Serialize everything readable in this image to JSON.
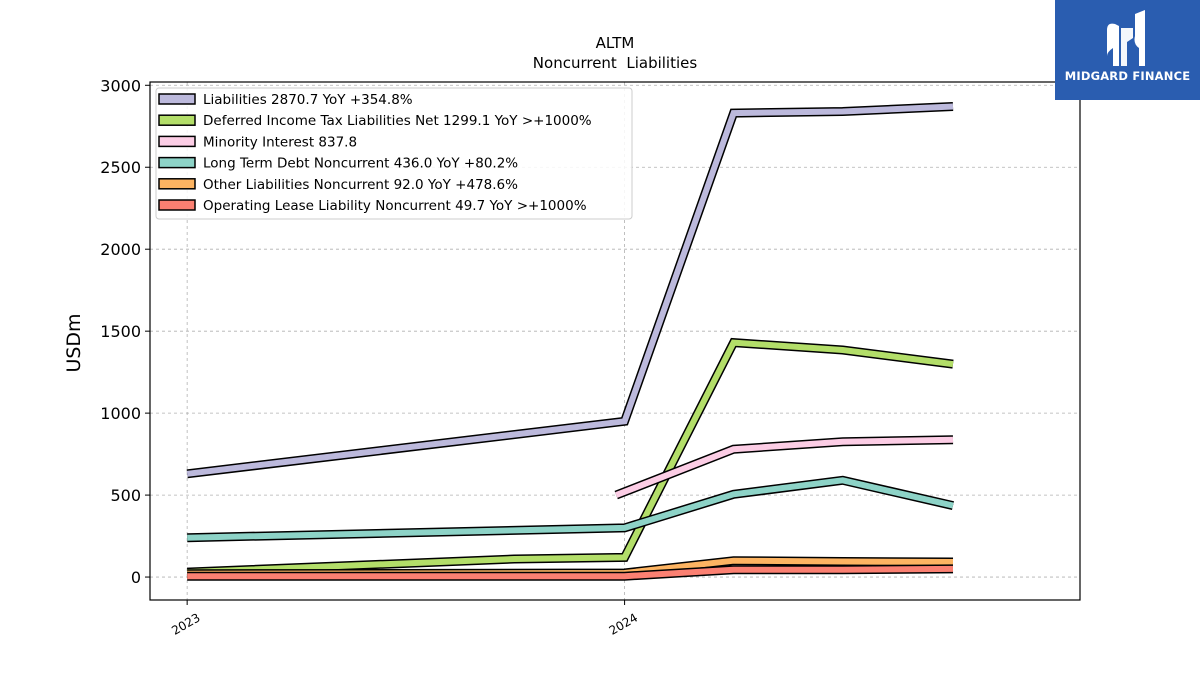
{
  "brand": {
    "name": "MIDGARD FINANCE",
    "color": "#2a5db0",
    "icon": "midgard-logo-icon"
  },
  "chart_data": {
    "type": "line",
    "title": "ALTM",
    "subtitle": "Noncurrent  Liabilities",
    "xlabel": "",
    "ylabel": "USDm",
    "xlim": [
      "2022-12-01",
      "2025-01-15"
    ],
    "ylim": [
      -140,
      3020
    ],
    "yticks": [
      0,
      500,
      1000,
      1500,
      2000,
      2500,
      3000
    ],
    "xticks": [
      {
        "date": "2023-01-01",
        "label": "2023"
      },
      {
        "date": "2024-01-01",
        "label": "2024"
      }
    ],
    "grid": true,
    "legend_position": "top-left",
    "series": [
      {
        "name": "Liabilities",
        "legend": "Liabilities  2870.7 YoY +354.8%",
        "color": "#bcb9dc",
        "points": [
          [
            "2023-01-01",
            630
          ],
          [
            "2024-01-01",
            950
          ],
          [
            "2024-04-01",
            2830
          ],
          [
            "2024-07-01",
            2840
          ],
          [
            "2024-10-01",
            2870.7
          ]
        ]
      },
      {
        "name": "Deferred Income Tax Liabilities Net",
        "legend": "Deferred Income Tax Liabilities Net  1299.1 YoY >+1000%",
        "color": "#b3de69",
        "points": [
          [
            "2023-01-01",
            30
          ],
          [
            "2023-10-01",
            110
          ],
          [
            "2024-01-01",
            120
          ],
          [
            "2024-04-01",
            1430
          ],
          [
            "2024-07-01",
            1385
          ],
          [
            "2024-10-01",
            1299.1
          ]
        ]
      },
      {
        "name": "Minority Interest",
        "legend": "Minority Interest  837.8",
        "color": "#fccde5",
        "points": [
          [
            "2023-12-25",
            500
          ],
          [
            "2024-04-01",
            780
          ],
          [
            "2024-07-01",
            825
          ],
          [
            "2024-10-01",
            837.8
          ]
        ]
      },
      {
        "name": "Long Term Debt Noncurrent",
        "legend": "Long Term Debt Noncurrent  436.0 YoY +80.2%",
        "color": "#8dd3c7",
        "points": [
          [
            "2023-01-01",
            240
          ],
          [
            "2024-01-01",
            300
          ],
          [
            "2024-04-01",
            505
          ],
          [
            "2024-07-01",
            590
          ],
          [
            "2024-10-01",
            436.0
          ]
        ]
      },
      {
        "name": "Other Liabilities Noncurrent",
        "legend": "Other Liabilities Noncurrent  92.0 YoY +478.6%",
        "color": "#fdb462",
        "points": [
          [
            "2023-01-01",
            20
          ],
          [
            "2024-01-01",
            25
          ],
          [
            "2024-04-01",
            100
          ],
          [
            "2024-07-01",
            95
          ],
          [
            "2024-10-01",
            92.0
          ]
        ]
      },
      {
        "name": "Operating Lease Liability Noncurrent",
        "legend": "Operating Lease Liability Noncurrent  49.7 YoY >+1000%",
        "color": "#fb8072",
        "points": [
          [
            "2023-01-01",
            5
          ],
          [
            "2024-01-01",
            5
          ],
          [
            "2024-04-01",
            45
          ],
          [
            "2024-07-01",
            45
          ],
          [
            "2024-10-01",
            49.7
          ]
        ]
      }
    ]
  }
}
